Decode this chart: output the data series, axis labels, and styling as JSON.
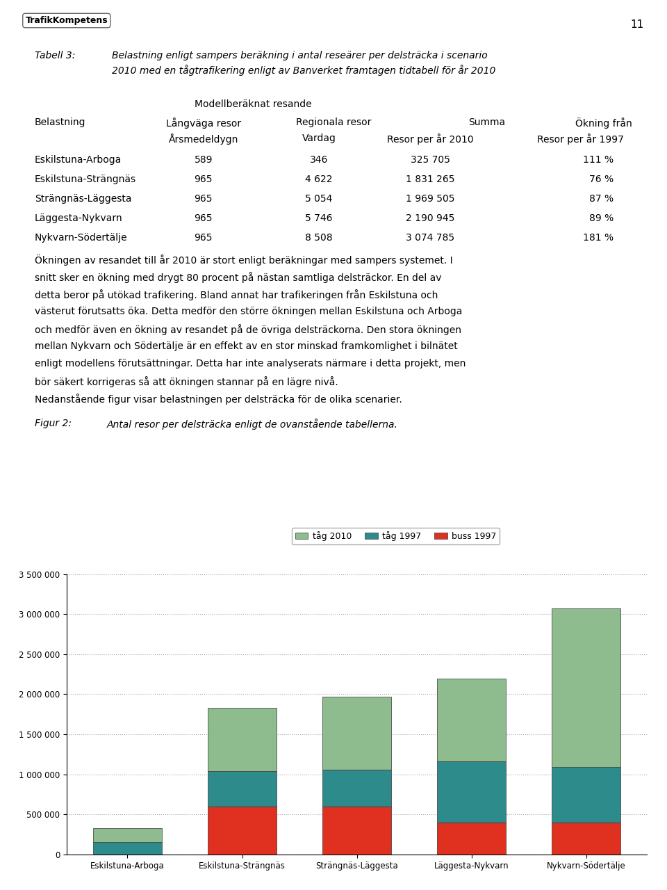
{
  "categories": [
    "Eskilstuna-Arboga",
    "Eskilstuna-Strängnäs",
    "Strängnäs-Läggesta",
    "Läggesta-Nykvarn",
    "Nykvarn-Södertälje"
  ],
  "tag_2010_total": [
    325705,
    1831265,
    1969505,
    2190945,
    3074785
  ],
  "tag_1997": [
    154600,
    440000,
    453000,
    759000,
    694000
  ],
  "buss_1997": [
    0,
    600000,
    600000,
    400000,
    400000
  ],
  "color_tag_2010": "#8fbc8f",
  "color_tag_1997": "#2e8b8b",
  "color_buss_1997": "#e03020",
  "ylim": [
    0,
    3500000
  ],
  "yticks": [
    0,
    500000,
    1000000,
    1500000,
    2000000,
    2500000,
    3000000,
    3500000
  ],
  "legend_labels": [
    "tåg 2010",
    "tåg 1997",
    "buss 1997"
  ],
  "background_color": "#ffffff",
  "grid_color": "#aaaaaa",
  "bar_edge_color": "#333333",
  "title_table": "Tabell 3:",
  "title_table_text": "Belastning enligt sampers beräkning i antal reseärer per delsträcka i scenario\n2010 med en tågtrafikering enligt av Banverket framtagen tidtabell för år 2010",
  "table_header_modell": "Modellberäknat resande",
  "col_belastning": "Belastning",
  "col_langvaga": "Långväga resor",
  "col_regionala": "Regionala resor",
  "col_summa": "Summa",
  "col_okning": "Ökning från",
  "col_arsmedel": "Årsmedeldygn",
  "col_vardag": "Vardag",
  "col_resor2010": "Resor per år 2010",
  "col_resor1997": "Resor per år 1997",
  "rows": [
    [
      "Eskilstuna-Arboga",
      "589",
      "346",
      "325 705",
      "111 %"
    ],
    [
      "Eskilstuna-Strängnäs",
      "965",
      "4 622",
      "1 831 265",
      "76 %"
    ],
    [
      "Strängnäs-Läggesta",
      "965",
      "5 054",
      "1 969 505",
      "87 %"
    ],
    [
      "Läggesta-Nykvarn",
      "965",
      "5 746",
      "2 190 945",
      "89 %"
    ],
    [
      "Nykvarn-Södertälje",
      "965",
      "8 508",
      "3 074 785",
      "181 %"
    ]
  ],
  "paragraph1_lines": [
    "Ökningen av resandet till år 2010 är stort enligt beräkningar med sampers systemet. I",
    "snitt sker en ökning med drygt 80 procent på nästan samtliga delsträckor. En del av",
    "detta beror på utökad trafikering. Bland annat har trafikeringen från Eskilstuna och",
    "västerut förutsatts öka. Detta medför den större ökningen mellan Eskilstuna och Arboga",
    "och medför även en ökning av resandet på de övriga delsträckorna. Den stora ökningen",
    "mellan Nykvarn och Södertälje är en effekt av en stor minskad framkomlighet i bilnätet",
    "enligt modellens förutsättningar. Detta har inte analyserats närmare i detta projekt, men",
    "bör säkert korrigeras så att ökningen stannar på en lägre nivå."
  ],
  "paragraph2": "Nedanstående figur visar belastningen per delsträcka för de olika scenarier.",
  "figur_label": "Figur 2:",
  "figur_text": "Antal resor per delsträcka enligt de ovanstående tabellerna.",
  "page_number": "11",
  "logo_text": "TrafikKompetens"
}
